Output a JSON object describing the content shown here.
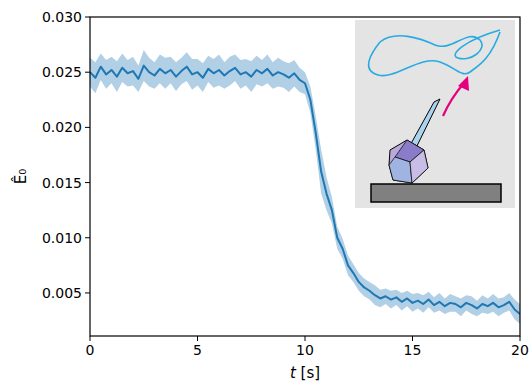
{
  "chart_data": {
    "type": "line",
    "x_label": "t [s]",
    "y_label": "Ê₀",
    "xlim": [
      0,
      20
    ],
    "ylim": [
      0.0011,
      0.03
    ],
    "xticks": [
      0,
      5,
      10,
      15,
      20
    ],
    "yticks": [
      0.005,
      {
        "value": 0.01,
        "label": "0.010"
      },
      0.015,
      {
        "value": 0.02,
        "label": "0.020"
      },
      0.025,
      {
        "value": 0.03,
        "label": "0.030"
      }
    ],
    "grid": false,
    "x": [
      0,
      0.25,
      0.5,
      0.75,
      1,
      1.25,
      1.5,
      1.75,
      2,
      2.25,
      2.5,
      2.75,
      3,
      3.25,
      3.5,
      3.75,
      4,
      4.25,
      4.5,
      4.75,
      5,
      5.25,
      5.5,
      5.75,
      6,
      6.25,
      6.5,
      6.75,
      7,
      7.25,
      7.5,
      7.75,
      8,
      8.25,
      8.5,
      8.75,
      9,
      9.25,
      9.5,
      9.75,
      10,
      10.25,
      10.5,
      10.75,
      11,
      11.25,
      11.5,
      11.75,
      12,
      12.25,
      12.5,
      12.75,
      13,
      13.25,
      13.5,
      13.75,
      14,
      14.25,
      14.5,
      14.75,
      15,
      15.25,
      15.5,
      15.75,
      16,
      16.25,
      16.5,
      16.75,
      17,
      17.25,
      17.5,
      17.75,
      18,
      18.25,
      18.5,
      18.75,
      19,
      19.25,
      19.5,
      19.75,
      20
    ],
    "series": [
      {
        "color": "#1f77b4",
        "values": [
          0.025,
          0.0245,
          0.0255,
          0.0248,
          0.0252,
          0.0246,
          0.0254,
          0.0249,
          0.0251,
          0.0244,
          0.0256,
          0.025,
          0.0247,
          0.0253,
          0.0249,
          0.0252,
          0.0246,
          0.0251,
          0.0255,
          0.0248,
          0.025,
          0.0245,
          0.0253,
          0.0249,
          0.0252,
          0.0247,
          0.0251,
          0.0254,
          0.0248,
          0.025,
          0.0246,
          0.0252,
          0.0249,
          0.0253,
          0.0247,
          0.025,
          0.0248,
          0.0245,
          0.0249,
          0.0243,
          0.024,
          0.0225,
          0.0195,
          0.016,
          0.014,
          0.0125,
          0.01,
          0.009,
          0.0075,
          0.0068,
          0.006,
          0.0055,
          0.0052,
          0.0048,
          0.0045,
          0.0047,
          0.0044,
          0.0046,
          0.0042,
          0.0045,
          0.0041,
          0.0043,
          0.004,
          0.0044,
          0.0039,
          0.0042,
          0.0038,
          0.0041,
          0.004,
          0.0037,
          0.0041,
          0.0039,
          0.0036,
          0.004,
          0.0038,
          0.0041,
          0.0037,
          0.0039,
          0.0042,
          0.0035,
          0.0031
        ],
        "error": [
          0.0013,
          0.0014,
          0.0012,
          0.0013,
          0.0012,
          0.0014,
          0.0013,
          0.0012,
          0.0013,
          0.0012,
          0.0014,
          0.0013,
          0.0012,
          0.0013,
          0.0014,
          0.0012,
          0.0013,
          0.0012,
          0.0013,
          0.0014,
          0.0012,
          0.0013,
          0.0012,
          0.0013,
          0.0014,
          0.0012,
          0.0013,
          0.0012,
          0.0013,
          0.0012,
          0.0014,
          0.0013,
          0.0012,
          0.0013,
          0.0012,
          0.0013,
          0.0012,
          0.0013,
          0.0012,
          0.0011,
          0.001,
          0.0012,
          0.0015,
          0.002,
          0.0015,
          0.0012,
          0.001,
          0.0009,
          0.0009,
          0.0008,
          0.0008,
          0.0008,
          0.0008,
          0.0009,
          0.0008,
          0.0007,
          0.0008,
          0.0007,
          0.0008,
          0.0007,
          0.0008,
          0.0007,
          0.0008,
          0.0007,
          0.0007,
          0.0008,
          0.0007,
          0.0008,
          0.0007,
          0.0008,
          0.0007,
          0.0008,
          0.0007,
          0.0008,
          0.0007,
          0.0008,
          0.0008,
          0.0007,
          0.0008,
          0.0009,
          0.0009
        ]
      }
    ]
  }
}
